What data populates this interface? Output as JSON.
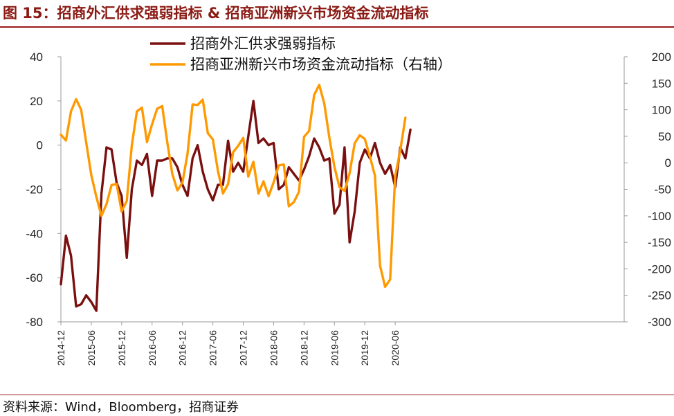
{
  "figure": {
    "title": "图 15：招商外汇供求强弱指标 & 招商亚洲新兴市场资金流动指标",
    "source": "资料来源：Wind，Bloomberg，招商证券"
  },
  "chart_data": {
    "type": "line",
    "title": "",
    "y_left": {
      "ylim": [
        -80,
        40
      ],
      "ticks": [
        "40",
        "20",
        "0",
        "-20",
        "-40",
        "-60",
        "-80"
      ]
    },
    "y_right": {
      "ylim": [
        -300,
        200
      ],
      "ticks": [
        "200",
        "150",
        "100",
        "50",
        "0",
        "-50",
        "-100",
        "-150",
        "-200",
        "-250",
        "-300"
      ]
    },
    "x_tick_labels": [
      "2014-12",
      "2015-06",
      "2015-12",
      "2016-06",
      "2016-12",
      "2017-06",
      "2017-12",
      "2018-06",
      "2018-12",
      "2019-06",
      "2019-12",
      "2020-06"
    ],
    "legend_position": "top-center",
    "series": [
      {
        "name": "招商外汇供求强弱指标",
        "axis": "left",
        "color": "#7a0f0f",
        "start": "2014-12",
        "values": [
          -63,
          -41,
          -50,
          -73,
          -72,
          -68,
          -71,
          -75,
          -22,
          -1,
          -2,
          -17,
          -23,
          -51,
          -20,
          -7,
          -9,
          -4,
          -23,
          -7,
          -7,
          -6,
          -6,
          -10,
          -18,
          -23,
          -6,
          0,
          -12,
          -20,
          -25,
          -18,
          -18,
          2,
          -12,
          -8,
          -12,
          4,
          20,
          1,
          3,
          0,
          1,
          -20,
          -18,
          -10,
          -13,
          -16,
          -11,
          -5,
          3,
          -1,
          -7,
          -6,
          -31,
          -27,
          -1,
          -44,
          -30,
          -8,
          -2,
          -6,
          1,
          -8,
          -13,
          -9,
          -19,
          -1,
          -6,
          7
        ]
      },
      {
        "name": "招商亚洲新兴市场资金流动指标（右轴）",
        "axis": "right",
        "color": "#ff9900",
        "start": "2014-12",
        "values": [
          53,
          42,
          97,
          120,
          100,
          38,
          -23,
          -64,
          -100,
          -78,
          -42,
          -40,
          -92,
          -72,
          33,
          97,
          104,
          39,
          73,
          102,
          107,
          39,
          -21,
          -52,
          -37,
          17,
          110,
          109,
          119,
          56,
          44,
          -15,
          -58,
          -40,
          20,
          32,
          47,
          -26,
          2,
          -58,
          -35,
          -63,
          -37,
          -5,
          -3,
          -82,
          -74,
          -55,
          49,
          60,
          128,
          147,
          112,
          47,
          -8,
          -46,
          -53,
          -20,
          37,
          52,
          45,
          12,
          -24,
          -194,
          -234,
          -220,
          -25,
          23,
          85
        ]
      }
    ]
  }
}
